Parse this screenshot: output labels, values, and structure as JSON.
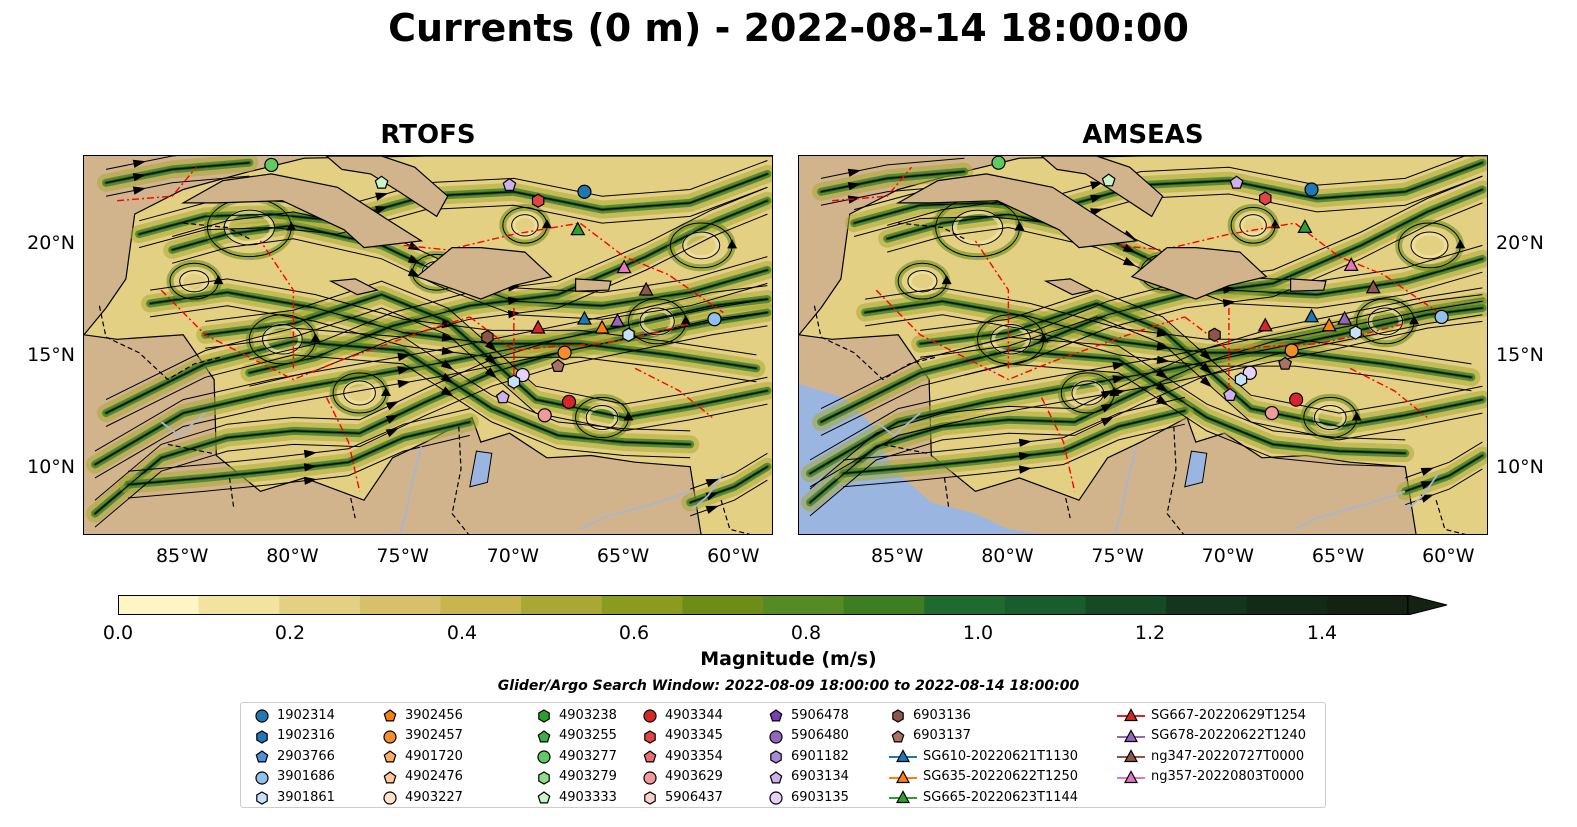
{
  "title": "Currents (0 m) - 2022-08-14 18:00:00",
  "panels": [
    {
      "title": "RTOFS",
      "ocean_bg": "#d2b48c",
      "pacific": "#d2b48c"
    },
    {
      "title": "AMSEAS",
      "ocean_bg": "#d2b48c",
      "pacific": "#9ab6e0"
    }
  ],
  "axes": {
    "lon_ticks": [
      "85°W",
      "80°W",
      "75°W",
      "70°W",
      "65°W",
      "60°W"
    ],
    "lon_values": [
      -85,
      -80,
      -75,
      -70,
      -65,
      -60
    ],
    "lat_ticks": [
      "20°N",
      "15°N",
      "10°N"
    ],
    "lat_values": [
      20,
      15,
      10
    ],
    "lon_range": [
      -89.5,
      -58.2
    ],
    "lat_range": [
      7,
      24
    ]
  },
  "colorbar": {
    "label": "Magnitude (m/s)",
    "ticks": [
      "0.0",
      "0.2",
      "0.4",
      "0.6",
      "0.8",
      "1.0",
      "1.2",
      "1.4"
    ],
    "tick_values": [
      0,
      0.2,
      0.4,
      0.6,
      0.8,
      1.0,
      1.2,
      1.4
    ],
    "range": [
      0,
      1.5
    ],
    "colors": [
      "#fdf5c4",
      "#f2e49f",
      "#e4d083",
      "#d6c06a",
      "#c8b54e",
      "#a9a735",
      "#8a9b1f",
      "#6d8d18",
      "#568a22",
      "#3e7e23",
      "#1f6a2e",
      "#195d2f",
      "#154a25",
      "#13361c",
      "#132a17",
      "#142214"
    ]
  },
  "search_window": "Glider/Argo Search Window: 2022-08-09 18:00:00 to 2022-08-14 18:00:00",
  "legend": [
    {
      "label": "1902314",
      "marker": "circle",
      "color": "#1f77b4"
    },
    {
      "label": "1902316",
      "marker": "hexagon",
      "color": "#1f77b4"
    },
    {
      "label": "2903766",
      "marker": "pentagon",
      "color": "#4a90d9"
    },
    {
      "label": "3901686",
      "marker": "circle",
      "color": "#8fc1ec"
    },
    {
      "label": "3901861",
      "marker": "hexagon",
      "color": "#c6e2fb"
    },
    {
      "label": "3902456",
      "marker": "pentagon",
      "color": "#ff7f0e"
    },
    {
      "label": "3902457",
      "marker": "circle",
      "color": "#f28e2b"
    },
    {
      "label": "4901720",
      "marker": "pentagon",
      "color": "#ffae5e"
    },
    {
      "label": "4902476",
      "marker": "pentagon",
      "color": "#ffc896"
    },
    {
      "label": "4903227",
      "marker": "circle",
      "color": "#ffe3c4"
    },
    {
      "label": "4903238",
      "marker": "hexagon",
      "color": "#2ca02c"
    },
    {
      "label": "4903255",
      "marker": "pentagon",
      "color": "#3cb043"
    },
    {
      "label": "4903277",
      "marker": "circle",
      "color": "#5fca5f"
    },
    {
      "label": "4903279",
      "marker": "hexagon",
      "color": "#8fdc8f"
    },
    {
      "label": "4903333",
      "marker": "pentagon",
      "color": "#c8f5c8"
    },
    {
      "label": "4903344",
      "marker": "circle",
      "color": "#d62728"
    },
    {
      "label": "4903345",
      "marker": "hexagon",
      "color": "#e04444"
    },
    {
      "label": "4903354",
      "marker": "pentagon",
      "color": "#eb6d6d"
    },
    {
      "label": "4903629",
      "marker": "circle",
      "color": "#f29a9a"
    },
    {
      "label": "5906437",
      "marker": "hexagon",
      "color": "#fbd0d0"
    },
    {
      "label": "5906478",
      "marker": "pentagon",
      "color": "#7b3fb5"
    },
    {
      "label": "5906480",
      "marker": "circle",
      "color": "#9467bd"
    },
    {
      "label": "6901182",
      "marker": "hexagon",
      "color": "#ad88d6"
    },
    {
      "label": "6903134",
      "marker": "pentagon",
      "color": "#cdb0ec"
    },
    {
      "label": "6903135",
      "marker": "circle",
      "color": "#e6d2fa"
    },
    {
      "label": "6903136",
      "marker": "hexagon",
      "color": "#8c564b"
    },
    {
      "label": "6903137",
      "marker": "pentagon",
      "color": "#a87366"
    },
    {
      "label": "SG610-20220621T1130",
      "marker": "triangle",
      "color": "#1f77b4",
      "line": true
    },
    {
      "label": "SG635-20220622T1250",
      "marker": "triangle",
      "color": "#ff7f0e",
      "line": true
    },
    {
      "label": "SG665-20220623T1144",
      "marker": "triangle",
      "color": "#2ca02c",
      "line": true
    },
    {
      "label": "SG667-20220629T1254",
      "marker": "triangle",
      "color": "#d62728",
      "line": true
    },
    {
      "label": "SG678-20220622T1240",
      "marker": "triangle",
      "color": "#9467bd",
      "line": true
    },
    {
      "label": "ng347-20220727T0000",
      "marker": "triangle",
      "color": "#8c564b",
      "line": true
    },
    {
      "label": "ng357-20220803T0000",
      "marker": "triangle",
      "color": "#e377c2",
      "line": true
    }
  ],
  "platforms": [
    {
      "id": "1902314",
      "lon": -66.8,
      "lat": 22.4
    },
    {
      "id": "4903345",
      "lon": -68.9,
      "lat": 22.0
    },
    {
      "id": "6903134",
      "lon": -70.2,
      "lat": 22.7
    },
    {
      "id": "4903333",
      "lon": -76.0,
      "lat": 22.8
    },
    {
      "id": "4903277",
      "lon": -81.0,
      "lat": 23.6
    },
    {
      "id": "SG665-20220623T1144",
      "lon": -67.1,
      "lat": 20.7
    },
    {
      "id": "ng357-20220803T0000",
      "lon": -65.0,
      "lat": 19.0
    },
    {
      "id": "ng347-20220727T0000",
      "lon": -64.0,
      "lat": 18.0
    },
    {
      "id": "SG610-20220621T1130",
      "lon": -66.8,
      "lat": 16.7
    },
    {
      "id": "SG678-20220622T1240",
      "lon": -65.3,
      "lat": 16.6
    },
    {
      "id": "SG635-20220622T1250",
      "lon": -66.0,
      "lat": 16.3
    },
    {
      "id": "3901861",
      "lon": -64.8,
      "lat": 16.0
    },
    {
      "id": "3901686",
      "lon": -60.9,
      "lat": 16.7
    },
    {
      "id": "SG667-20220629T1254",
      "lon": -68.9,
      "lat": 16.3
    },
    {
      "id": "6903136",
      "lon": -71.2,
      "lat": 15.9
    },
    {
      "id": "3902457",
      "lon": -67.7,
      "lat": 15.2
    },
    {
      "id": "6903137",
      "lon": -68.0,
      "lat": 14.6
    },
    {
      "id": "6903135",
      "lon": -69.6,
      "lat": 14.2
    },
    {
      "id": "3901861b",
      "lon": -70.0,
      "lat": 13.9
    },
    {
      "id": "6903134b",
      "lon": -70.5,
      "lat": 13.2
    },
    {
      "id": "4903344",
      "lon": -67.5,
      "lat": 13.0
    },
    {
      "id": "4903629",
      "lon": -68.6,
      "lat": 12.4
    }
  ]
}
